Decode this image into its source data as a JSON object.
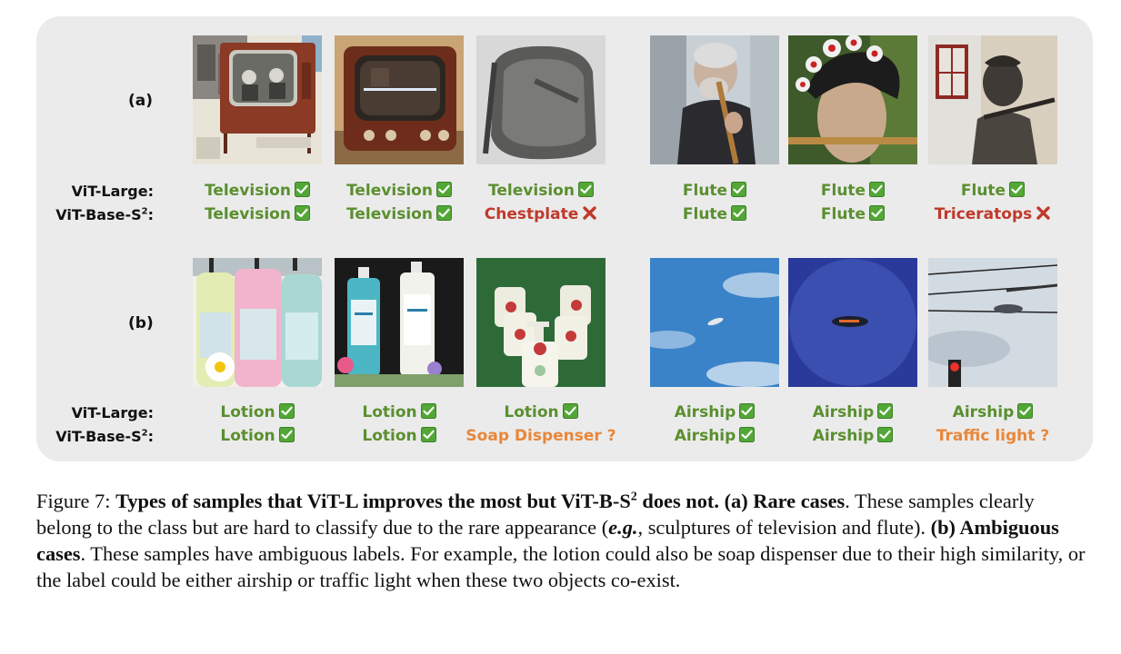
{
  "row_a": {
    "label": "(a)",
    "vit_large_label": "ViT-Large:",
    "vit_base_label": "ViT-Base-S",
    "vit_base_sup": "2",
    "vit_base_suffix": ":",
    "preds": [
      {
        "large": "Television",
        "base": "Television",
        "base_status": "correct"
      },
      {
        "large": "Television",
        "base": "Television",
        "base_status": "correct"
      },
      {
        "large": "Television",
        "base": "Chestplate",
        "base_status": "wrong"
      },
      {
        "large": "Flute",
        "base": "Flute",
        "base_status": "correct"
      },
      {
        "large": "Flute",
        "base": "Flute",
        "base_status": "correct"
      },
      {
        "large": "Flute",
        "base": "Triceratops",
        "base_status": "wrong"
      }
    ]
  },
  "row_b": {
    "label": "(b)",
    "vit_large_label": "ViT-Large:",
    "vit_base_label": "ViT-Base-S",
    "vit_base_sup": "2",
    "vit_base_suffix": ":",
    "preds": [
      {
        "large": "Lotion",
        "base": "Lotion",
        "base_status": "correct"
      },
      {
        "large": "Lotion",
        "base": "Lotion",
        "base_status": "correct"
      },
      {
        "large": "Lotion",
        "base": "Soap Dispenser ?",
        "base_status": "ambiguous"
      },
      {
        "large": "Airship",
        "base": "Airship",
        "base_status": "correct"
      },
      {
        "large": "Airship",
        "base": "Airship",
        "base_status": "correct"
      },
      {
        "large": "Airship",
        "base": "Traffic light ?",
        "base_status": "ambiguous"
      }
    ]
  },
  "colors": {
    "correct": "#5a8f2e",
    "wrong": "#c0392b",
    "ambiguous": "#e8873a",
    "panel": "#ebebeb"
  },
  "icons": {
    "correct": "check-box-icon",
    "wrong": "red-x-icon"
  },
  "caption": {
    "fig_num": "Figure 7: ",
    "bold_title": "Types of samples that ViT-L improves the most but ViT-B-S",
    "bold_sup": "2",
    "bold_title_end": " does not.",
    "part_a_label": " (a) Rare cases",
    "part_a_text": ". These samples clearly belong to the class but are hard to classify due to the rare appearance (",
    "eg": "e.g.",
    "part_a_text2": ", sculptures of television and flute). ",
    "part_b_label": "(b) Ambiguous cases",
    "part_b_text": ". These samples have ambiguous labels. For example, the lotion could also be soap dispenser due to their high similarity, or the label could be either airship or traffic light when these two objects co-exist."
  }
}
